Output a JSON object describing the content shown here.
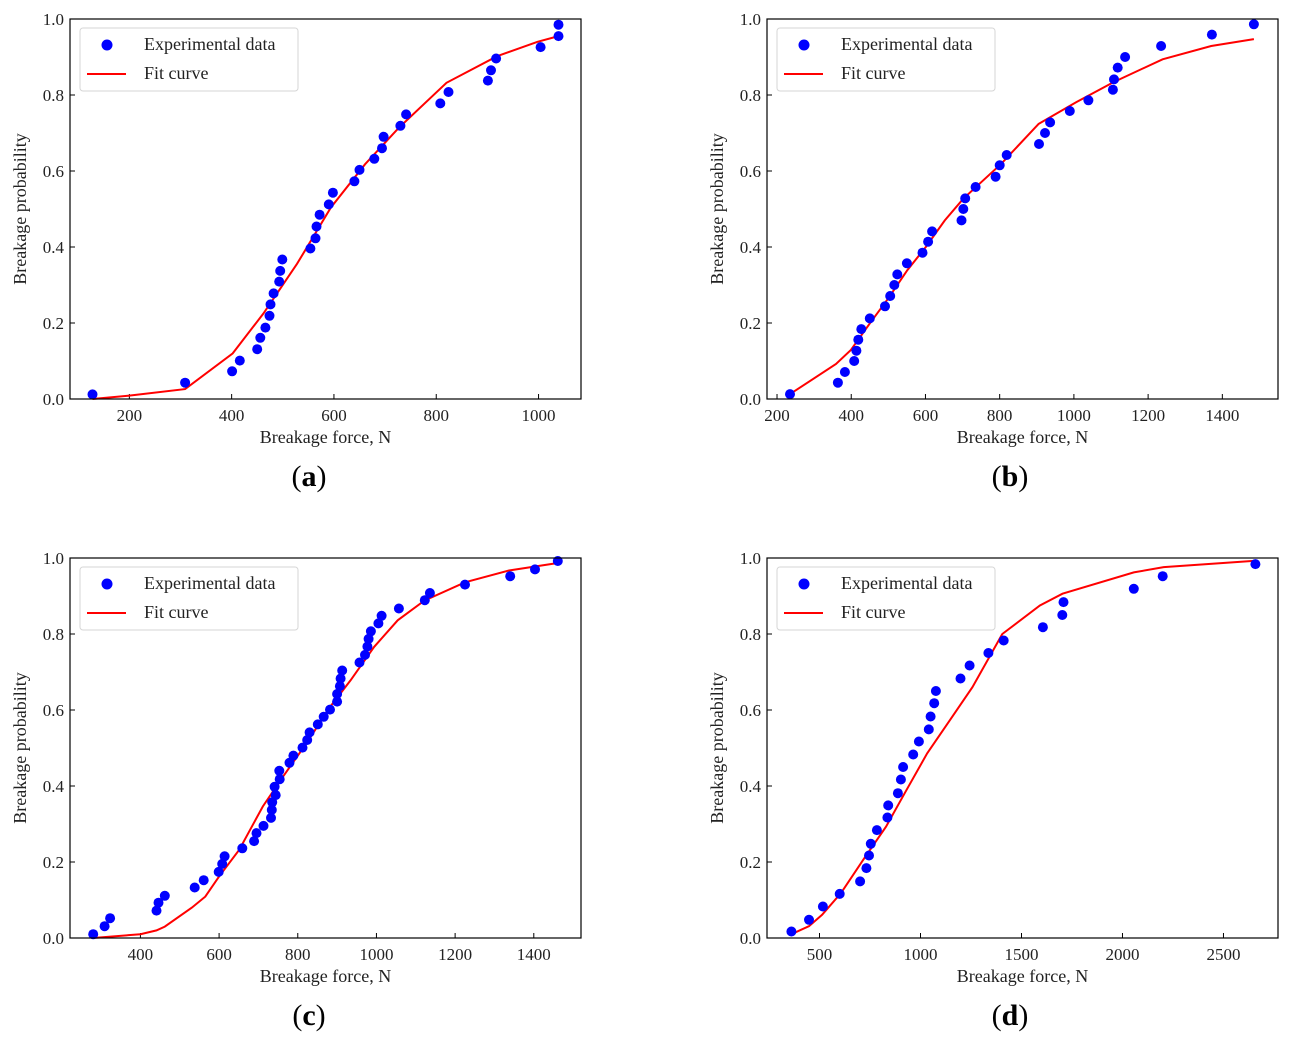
{
  "chart_data": [
    {
      "type": "scatter",
      "panel_label": "a",
      "xlabel": "Breakage force, N",
      "ylabel": "Breakage probability",
      "xlim": [
        84,
        1083
      ],
      "ylim": [
        0,
        1
      ],
      "xticks": [
        200,
        400,
        600,
        800,
        1000
      ],
      "yticks": [
        0.0,
        0.2,
        0.4,
        0.6,
        0.8,
        1.0
      ],
      "grid": false,
      "legend": {
        "placement": "top-left",
        "entries": [
          "Experimental data",
          "Fit curve"
        ]
      },
      "series": [
        {
          "name": "Experimental data",
          "kind": "scatter",
          "color": "#0000ff",
          "x": [
            128,
            309,
            401,
            416,
            450,
            456,
            466,
            474,
            476,
            482,
            493,
            495,
            499,
            554,
            564,
            566,
            572,
            590,
            598,
            640,
            650,
            679,
            694,
            697,
            730,
            741,
            808,
            824,
            901,
            907,
            917,
            1004,
            1039,
            1039
          ],
          "y": [
            0.012,
            0.043,
            0.073,
            0.101,
            0.131,
            0.161,
            0.188,
            0.219,
            0.249,
            0.278,
            0.309,
            0.337,
            0.367,
            0.396,
            0.423,
            0.454,
            0.485,
            0.512,
            0.543,
            0.573,
            0.603,
            0.632,
            0.66,
            0.69,
            0.719,
            0.749,
            0.778,
            0.808,
            0.838,
            0.865,
            0.896,
            0.926,
            0.955,
            0.985
          ]
        },
        {
          "name": "Fit curve",
          "kind": "line",
          "color": "#ff0000",
          "x": [
            128,
            200,
            309,
            402,
            462,
            528,
            594,
            661,
            727,
            820,
            919,
            998,
            1039
          ],
          "y": [
            0.0,
            0.009,
            0.026,
            0.12,
            0.225,
            0.356,
            0.504,
            0.618,
            0.714,
            0.832,
            0.902,
            0.94,
            0.955
          ]
        }
      ]
    },
    {
      "type": "scatter",
      "panel_label": "b",
      "xlabel": "Breakage force, N",
      "ylabel": "Breakage probability",
      "xlim": [
        173,
        1550
      ],
      "ylim": [
        0,
        1
      ],
      "xticks": [
        200,
        400,
        600,
        800,
        1000,
        1200,
        1400
      ],
      "yticks": [
        0.0,
        0.2,
        0.4,
        0.6,
        0.8,
        1.0
      ],
      "grid": false,
      "legend": {
        "placement": "top-left",
        "entries": [
          "Experimental data",
          "Fit curve"
        ]
      },
      "series": [
        {
          "name": "Experimental data",
          "kind": "scatter",
          "color": "#0000ff",
          "x": [
            235,
            364,
            383,
            408,
            414,
            419,
            427,
            450,
            491,
            505,
            516,
            524,
            550,
            592,
            607,
            618,
            697,
            702,
            707,
            735,
            789,
            800,
            819,
            906,
            922,
            936,
            989,
            1039,
            1105,
            1108,
            1118,
            1138,
            1235,
            1372,
            1485
          ],
          "y": [
            0.013,
            0.043,
            0.071,
            0.1,
            0.127,
            0.156,
            0.184,
            0.212,
            0.244,
            0.271,
            0.3,
            0.328,
            0.357,
            0.385,
            0.414,
            0.441,
            0.47,
            0.5,
            0.528,
            0.558,
            0.585,
            0.615,
            0.642,
            0.671,
            0.7,
            0.728,
            0.758,
            0.786,
            0.814,
            0.841,
            0.872,
            0.9,
            0.929,
            0.959,
            0.986
          ]
        },
        {
          "name": "Fit curve",
          "kind": "line",
          "color": "#ff0000",
          "x": [
            235,
            359,
            399,
            450,
            500,
            551,
            601,
            652,
            702,
            804,
            905,
            1006,
            1107,
            1239,
            1370,
            1485
          ],
          "y": [
            0.013,
            0.092,
            0.129,
            0.199,
            0.265,
            0.339,
            0.4,
            0.47,
            0.527,
            0.619,
            0.724,
            0.781,
            0.834,
            0.894,
            0.929,
            0.947
          ]
        }
      ]
    },
    {
      "type": "scatter",
      "panel_label": "c",
      "xlabel": "Breakage force, N",
      "ylabel": "Breakage probability",
      "xlim": [
        221,
        1520
      ],
      "ylim": [
        0,
        1
      ],
      "xticks": [
        400,
        600,
        800,
        1000,
        1200,
        1400
      ],
      "yticks": [
        0.0,
        0.2,
        0.4,
        0.6,
        0.8,
        1.0
      ],
      "grid": false,
      "legend": {
        "placement": "top-left",
        "entries": [
          "Experimental data",
          "Fit curve"
        ]
      },
      "series": [
        {
          "name": "Experimental data",
          "kind": "scatter",
          "color": "#0000ff",
          "x": [
            280,
            309,
            323,
            441,
            446,
            462,
            538,
            561,
            599,
            608,
            614,
            659,
            689,
            695,
            713,
            732,
            734,
            735,
            744,
            741,
            754,
            753,
            779,
            789,
            812,
            824,
            830,
            851,
            866,
            882,
            900,
            900,
            907,
            909,
            913,
            957,
            971,
            977,
            980,
            986,
            1005,
            1013,
            1057,
            1123,
            1136,
            1225,
            1340,
            1403,
            1461
          ],
          "y": [
            0.01,
            0.031,
            0.052,
            0.072,
            0.093,
            0.111,
            0.133,
            0.152,
            0.174,
            0.195,
            0.215,
            0.236,
            0.255,
            0.276,
            0.295,
            0.316,
            0.337,
            0.357,
            0.376,
            0.398,
            0.418,
            0.44,
            0.461,
            0.48,
            0.501,
            0.521,
            0.541,
            0.562,
            0.582,
            0.601,
            0.622,
            0.642,
            0.663,
            0.683,
            0.704,
            0.725,
            0.745,
            0.767,
            0.787,
            0.807,
            0.828,
            0.848,
            0.867,
            0.889,
            0.908,
            0.93,
            0.952,
            0.97,
            0.992
          ]
        },
        {
          "name": "Fit curve",
          "kind": "line",
          "color": "#ff0000",
          "x": [
            280,
            400,
            441,
            462,
            531,
            565,
            600,
            651,
            711,
            762,
            822,
            882,
            934,
            994,
            1054,
            1122,
            1225,
            1337,
            1457
          ],
          "y": [
            0.0,
            0.01,
            0.02,
            0.03,
            0.08,
            0.109,
            0.162,
            0.232,
            0.346,
            0.424,
            0.512,
            0.608,
            0.678,
            0.766,
            0.836,
            0.888,
            0.936,
            0.967,
            0.986
          ]
        }
      ]
    },
    {
      "type": "scatter",
      "panel_label": "d",
      "xlabel": "Breakage force, N",
      "ylabel": "Breakage probability",
      "xlim": [
        240,
        2770
      ],
      "ylim": [
        0,
        1
      ],
      "xticks": [
        500,
        1000,
        1500,
        2000,
        2500
      ],
      "yticks": [
        0.0,
        0.2,
        0.4,
        0.6,
        0.8,
        1.0
      ],
      "grid": false,
      "legend": {
        "placement": "top-left",
        "entries": [
          "Experimental data",
          "Fit curve"
        ]
      },
      "series": [
        {
          "name": "Experimental data",
          "kind": "scatter",
          "color": "#0000ff",
          "x": [
            361,
            448,
            517,
            600,
            701,
            732,
            745,
            754,
            784,
            836,
            840,
            888,
            903,
            914,
            964,
            992,
            1041,
            1050,
            1068,
            1076,
            1198,
            1243,
            1336,
            1412,
            1606,
            1702,
            1708,
            2056,
            2199,
            2658
          ],
          "y": [
            0.017,
            0.048,
            0.083,
            0.116,
            0.149,
            0.184,
            0.217,
            0.248,
            0.284,
            0.317,
            0.349,
            0.381,
            0.417,
            0.45,
            0.483,
            0.517,
            0.549,
            0.583,
            0.618,
            0.65,
            0.683,
            0.717,
            0.75,
            0.783,
            0.818,
            0.85,
            0.884,
            0.919,
            0.952,
            0.984
          ]
        },
        {
          "name": "Fit curve",
          "kind": "line",
          "color": "#ff0000",
          "x": [
            361,
            448,
            513,
            606,
            717,
            829,
            922,
            1033,
            1145,
            1257,
            1405,
            1591,
            1703,
            2056,
            2204,
            2658
          ],
          "y": [
            0.01,
            0.031,
            0.061,
            0.118,
            0.206,
            0.293,
            0.381,
            0.486,
            0.573,
            0.66,
            0.8,
            0.875,
            0.906,
            0.962,
            0.976,
            0.993
          ]
        }
      ]
    }
  ]
}
